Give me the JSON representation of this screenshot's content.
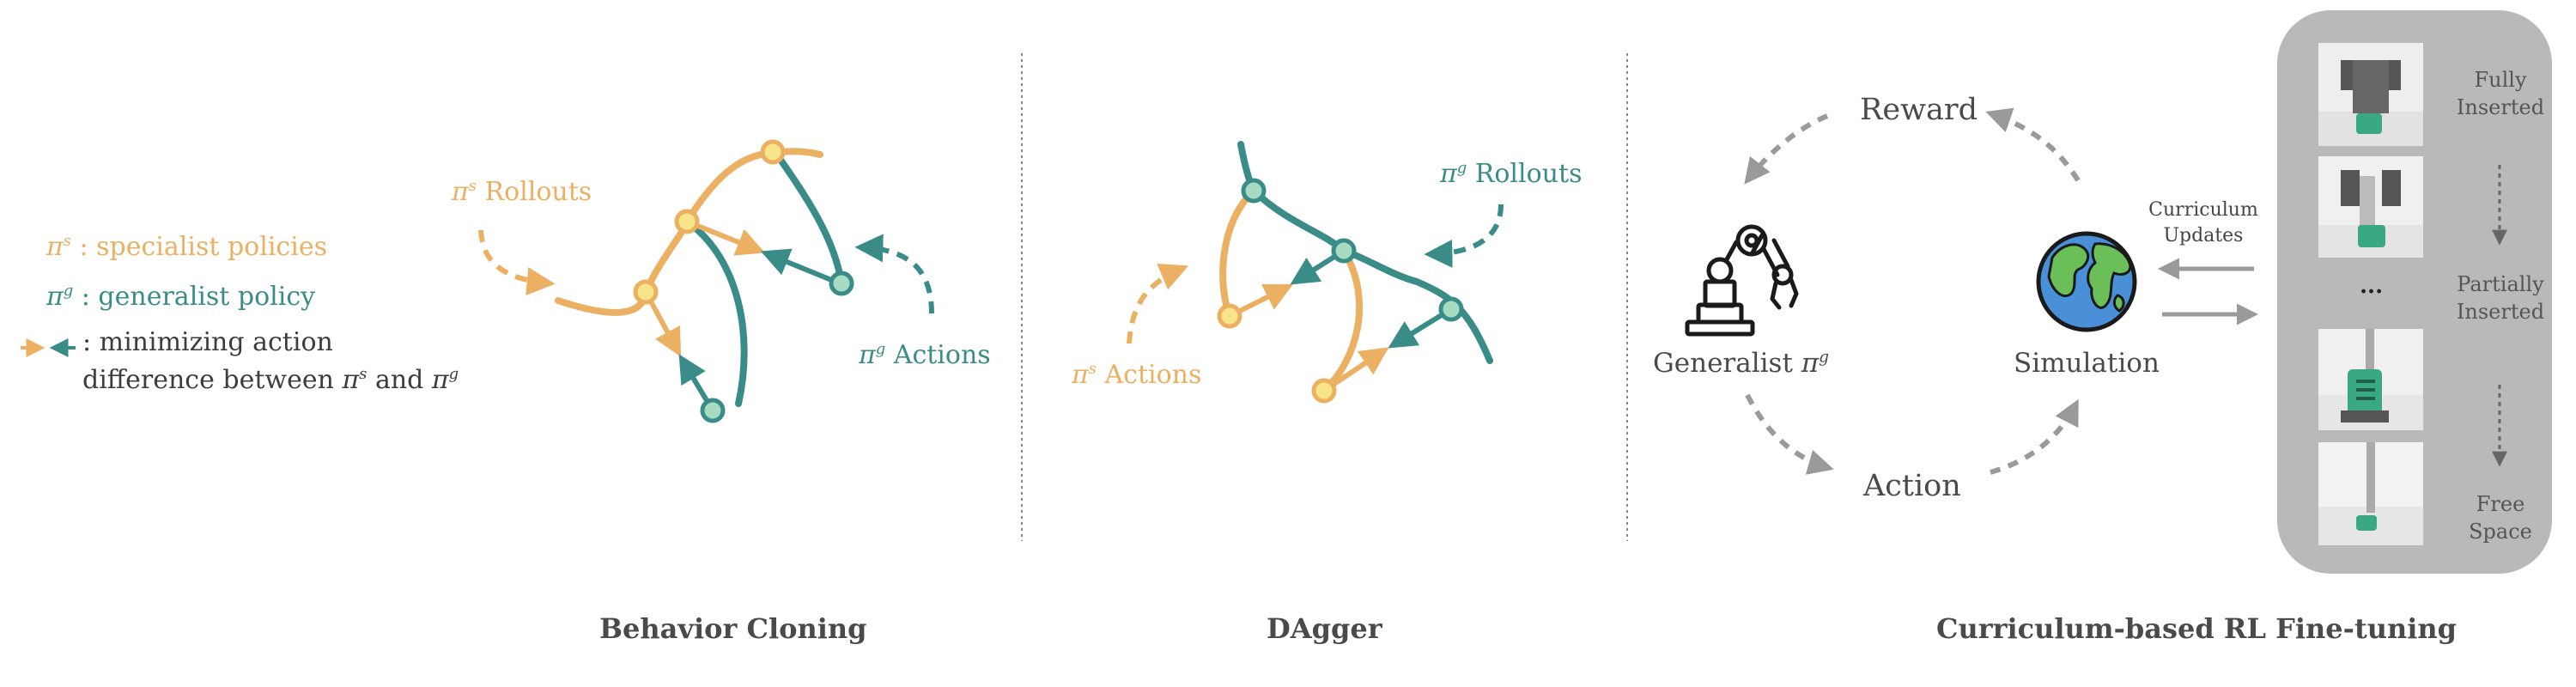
{
  "colors": {
    "specialist": "#EBB062",
    "generalist": "#3A8C88",
    "arrow_gray": "#9a9a9a",
    "panel_bg": "#b9b9b9"
  },
  "legend": {
    "specialist_symbol": "π",
    "specialist_sup": "s",
    "specialist_text": " : specialist policies",
    "generalist_symbol": "π",
    "generalist_sup": "g",
    "generalist_text": " : generalist policy",
    "arrows_text": ": minimizing action",
    "difference_line_prefix": "difference between ",
    "difference_line_sym1": "π",
    "difference_line_sup1": "s",
    "difference_line_and": " and ",
    "difference_line_sym2": "π",
    "difference_line_sup2": "g"
  },
  "behavior_cloning": {
    "title": "Behavior Cloning",
    "rollouts_symbol": "π",
    "rollouts_sup": "s",
    "rollouts_label": " Rollouts",
    "actions_symbol": "π",
    "actions_sup": "g",
    "actions_label": " Actions"
  },
  "dagger": {
    "title": "DAgger",
    "rollouts_symbol": "π",
    "rollouts_sup": "g",
    "rollouts_label": " Rollouts",
    "actions_symbol": "π",
    "actions_sup": "s",
    "actions_label": " Actions"
  },
  "curriculum": {
    "title": "Curriculum-based RL Fine-tuning",
    "reward": "Reward",
    "action": "Action",
    "generalist_prefix": "Generalist ",
    "generalist_symbol": "π",
    "generalist_sup": "g",
    "simulation": "Simulation",
    "curriculum_updates_line1": "Curriculum",
    "curriculum_updates_line2": "Updates",
    "robot_icon": "robot-arm-icon",
    "globe_icon": "globe-icon"
  },
  "insertion_panel": {
    "fully_line1": "Fully",
    "fully_line2": "Inserted",
    "dots": "...",
    "partially_line1": "Partially",
    "partially_line2": "Inserted",
    "free_line1": "Free",
    "free_line2": "Space"
  }
}
